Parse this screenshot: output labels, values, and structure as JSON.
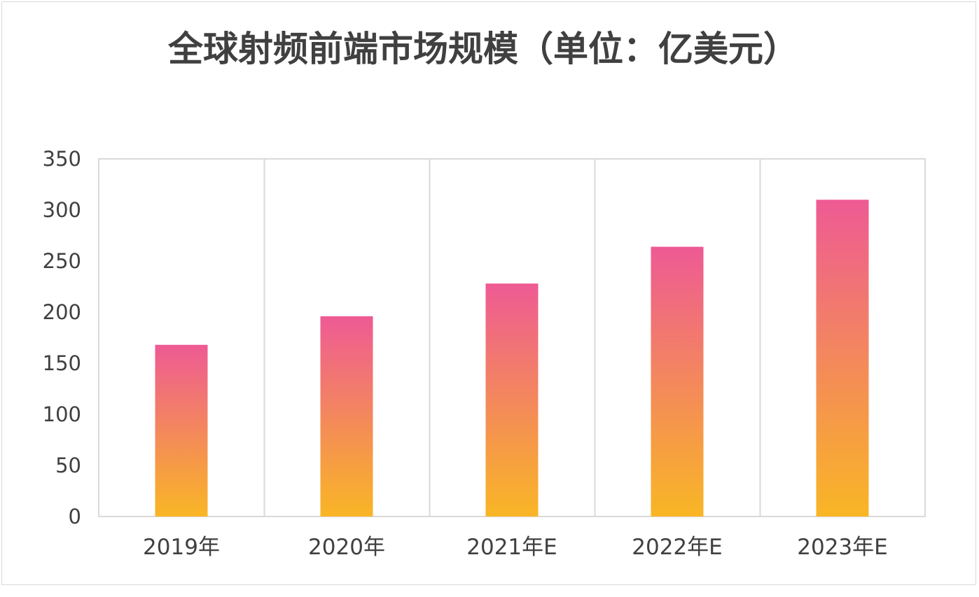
{
  "chart_data": {
    "type": "bar",
    "title": "全球射频前端市场规模（单位：亿美元）",
    "categories": [
      "2019年",
      "2020年",
      "2021年E",
      "2022年E",
      "2023年E"
    ],
    "values": [
      168,
      196,
      228,
      264,
      310
    ],
    "ylim": [
      0,
      350
    ],
    "yticks": [
      0,
      50,
      100,
      150,
      200,
      250,
      300,
      350
    ],
    "xlabel": "",
    "ylabel": "",
    "grid": true,
    "legend": false,
    "bar_gradient": {
      "top": "#ee5a94",
      "bottom": "#f9b625"
    },
    "grid_color": "#d9d9d9"
  }
}
